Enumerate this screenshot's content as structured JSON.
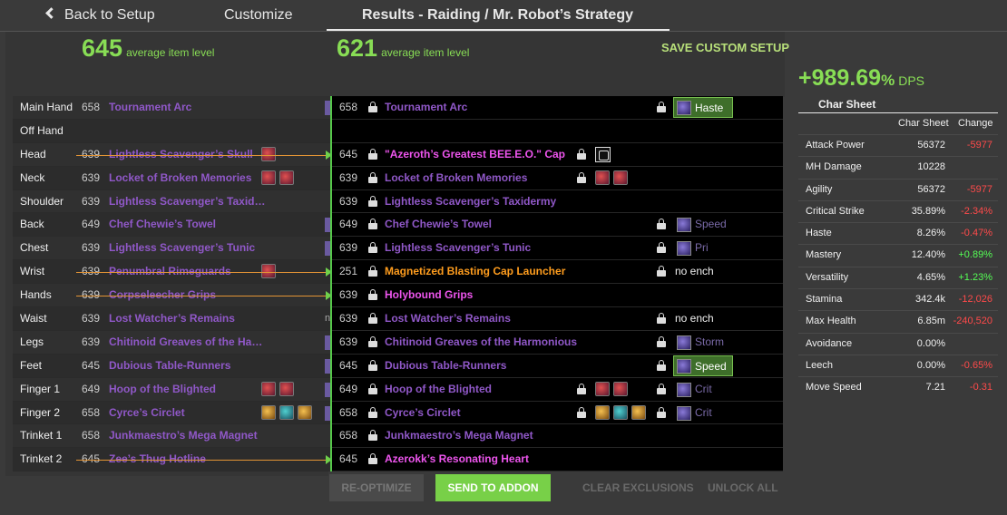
{
  "nav": {
    "back_label": "Back to Setup",
    "customize_label": "Customize",
    "results_label": "Results - Raiding / Mr. Robot’s Strategy"
  },
  "left_ilvl": {
    "value": "645",
    "label": "average item level"
  },
  "right_ilvl": {
    "value": "621",
    "label": "average item level"
  },
  "save_custom_label": "SAVE CUSTOM SETUP",
  "current": [
    {
      "slot": "Main Hand",
      "level": "658",
      "name": "Tournament Arc",
      "struck": false
    },
    {
      "slot": "Off Hand",
      "level": "",
      "name": "",
      "struck": false
    },
    {
      "slot": "Head",
      "level": "639",
      "name": "Lightless Scavenger’s Skull",
      "struck": true
    },
    {
      "slot": "Neck",
      "level": "639",
      "name": "Locket of Broken Memories",
      "struck": false
    },
    {
      "slot": "Shoulder",
      "level": "639",
      "name": "Lightless Scavenger’s Taxid…",
      "struck": false
    },
    {
      "slot": "Back",
      "level": "649",
      "name": "Chef Chewie’s Towel",
      "struck": false
    },
    {
      "slot": "Chest",
      "level": "639",
      "name": "Lightless Scavenger’s Tunic",
      "struck": false
    },
    {
      "slot": "Wrist",
      "level": "639",
      "name": "Penumbral Rimeguards",
      "struck": true
    },
    {
      "slot": "Hands",
      "level": "639",
      "name": "Corpseleecher Grips",
      "struck": true
    },
    {
      "slot": "Waist",
      "level": "639",
      "name": "Lost Watcher’s Remains",
      "struck": false,
      "edge_text": "n"
    },
    {
      "slot": "Legs",
      "level": "639",
      "name": "Chitinoid Greaves of the Ha…",
      "struck": false
    },
    {
      "slot": "Feet",
      "level": "645",
      "name": "Dubious Table-Runners",
      "struck": false
    },
    {
      "slot": "Finger 1",
      "level": "649",
      "name": "Hoop of the Blighted",
      "struck": false
    },
    {
      "slot": "Finger 2",
      "level": "658",
      "name": "Cyrce’s Circlet",
      "struck": false
    },
    {
      "slot": "Trinket 1",
      "level": "658",
      "name": "Junkmaestro’s Mega Magnet",
      "struck": false
    },
    {
      "slot": "Trinket 2",
      "level": "645",
      "name": "Zee’s Thug Hotline",
      "struck": true
    }
  ],
  "results": [
    {
      "level": "658",
      "name": "Tournament Arc",
      "enchant": "Haste"
    },
    {
      "level": "",
      "name": "",
      "enchant": ""
    },
    {
      "level": "645",
      "name": "\"Azeroth’s Greatest BEE.E.O.\" Cap",
      "enchant": ""
    },
    {
      "level": "639",
      "name": "Locket of Broken Memories",
      "enchant": ""
    },
    {
      "level": "639",
      "name": "Lightless Scavenger’s Taxidermy",
      "enchant": ""
    },
    {
      "level": "649",
      "name": "Chef Chewie’s Towel",
      "enchant": "Speed"
    },
    {
      "level": "639",
      "name": "Lightless Scavenger’s Tunic",
      "enchant": "Pri"
    },
    {
      "level": "251",
      "name": "Magnetized Blasting Cap Launcher",
      "enchant": "no ench"
    },
    {
      "level": "639",
      "name": "Holybound Grips",
      "enchant": ""
    },
    {
      "level": "639",
      "name": "Lost Watcher’s Remains",
      "enchant": "no ench"
    },
    {
      "level": "639",
      "name": "Chitinoid Greaves of the Harmonious",
      "enchant": "Storm"
    },
    {
      "level": "645",
      "name": "Dubious Table-Runners",
      "enchant": "Speed"
    },
    {
      "level": "649",
      "name": "Hoop of the Blighted",
      "enchant": "Crit"
    },
    {
      "level": "658",
      "name": "Cyrce’s Circlet",
      "enchant": "Crit"
    },
    {
      "level": "658",
      "name": "Junkmaestro’s Mega Magnet",
      "enchant": ""
    },
    {
      "level": "645",
      "name": "Azerokk’s Resonating Heart",
      "enchant": ""
    }
  ],
  "buttons": {
    "reoptimize": "RE-OPTIMIZE",
    "send": "SEND TO ADDON",
    "clear": "CLEAR EXCLUSIONS",
    "unlock": "UNLOCK ALL"
  },
  "dps": {
    "value": "+989.69",
    "pct": "%",
    "unit": "DPS"
  },
  "char_sheet": {
    "title": "Char Sheet",
    "col_value": "Char Sheet",
    "col_change": "Change",
    "stats": [
      {
        "name": "Attack Power",
        "value": "56372",
        "change": "-5977",
        "dir": "neg"
      },
      {
        "name": "MH Damage",
        "value": "10228",
        "change": "",
        "dir": ""
      },
      {
        "name": "Agility",
        "value": "56372",
        "change": "-5977",
        "dir": "neg"
      },
      {
        "name": "Critical Strike",
        "value": "35.89%",
        "change": "-2.34%",
        "dir": "neg"
      },
      {
        "name": "Haste",
        "value": "8.26%",
        "change": "-0.47%",
        "dir": "neg"
      },
      {
        "name": "Mastery",
        "value": "12.40%",
        "change": "+0.89%",
        "dir": "pos"
      },
      {
        "name": "Versatility",
        "value": "4.65%",
        "change": "+1.23%",
        "dir": "pos"
      },
      {
        "name": "Stamina",
        "value": "342.4k",
        "change": "-12,026",
        "dir": "neg"
      },
      {
        "name": "Max Health",
        "value": "6.85m",
        "change": "-240,520",
        "dir": "neg"
      },
      {
        "name": "Avoidance",
        "value": "0.00%",
        "change": "",
        "dir": ""
      },
      {
        "name": "Leech",
        "value": "0.00%",
        "change": "-0.65%",
        "dir": "neg"
      },
      {
        "name": "Move Speed",
        "value": "7.21",
        "change": "-0.31",
        "dir": "neg"
      }
    ]
  },
  "colors": {
    "accent_green": "#88dd55",
    "item_purple": "#9058c8",
    "item_pink": "#ee55ee",
    "item_orange": "#ff9d1e",
    "negative": "#ff4a4a",
    "positive": "#55ff55"
  }
}
